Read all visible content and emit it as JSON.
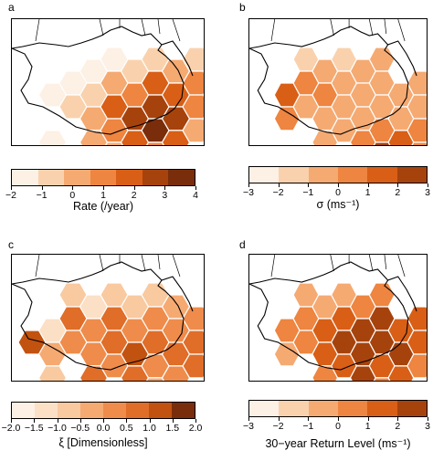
{
  "panels": [
    {
      "id": "a",
      "label": "a",
      "colorbar_title": "Rate (/year)",
      "ticks": [
        "−2",
        "−1",
        "0",
        "1",
        "2",
        "3",
        "4"
      ],
      "colors": [
        "#fdf0e4",
        "#f9d2ad",
        "#f5aa72",
        "#ee8540",
        "#d95f16",
        "#a6430d",
        "#7a2d0b"
      ],
      "cells": [
        {
          "c": 1,
          "r": 1,
          "v": 0
        },
        {
          "c": 1,
          "r": 3,
          "v": 0
        },
        {
          "c": 2,
          "r": 1,
          "v": 0
        },
        {
          "c": 2,
          "r": 2,
          "v": 1
        },
        {
          "c": 3,
          "r": 0,
          "v": 0
        },
        {
          "c": 3,
          "r": 1,
          "v": 1
        },
        {
          "c": 3,
          "r": 2,
          "v": 2
        },
        {
          "c": 3,
          "r": 3,
          "v": 2
        },
        {
          "c": 3,
          "r": 4,
          "v": 1
        },
        {
          "c": 4,
          "r": 0,
          "v": 0
        },
        {
          "c": 4,
          "r": 1,
          "v": 2
        },
        {
          "c": 4,
          "r": 2,
          "v": 4
        },
        {
          "c": 4,
          "r": 3,
          "v": 3
        },
        {
          "c": 4,
          "r": 4,
          "v": 2
        },
        {
          "c": 5,
          "r": 0,
          "v": 1
        },
        {
          "c": 5,
          "r": 1,
          "v": 3
        },
        {
          "c": 5,
          "r": 2,
          "v": 5
        },
        {
          "c": 5,
          "r": 3,
          "v": 4
        },
        {
          "c": 5,
          "r": 4,
          "v": 2
        },
        {
          "c": 5,
          "r": 5,
          "v": 1
        },
        {
          "c": 6,
          "r": 0,
          "v": 1
        },
        {
          "c": 6,
          "r": 1,
          "v": 4
        },
        {
          "c": 6,
          "r": 2,
          "v": 5
        },
        {
          "c": 6,
          "r": 3,
          "v": 6
        },
        {
          "c": 6,
          "r": 4,
          "v": 3
        },
        {
          "c": 6,
          "r": 5,
          "v": 2
        },
        {
          "c": 7,
          "r": 0,
          "v": 2
        },
        {
          "c": 7,
          "r": 1,
          "v": 4
        },
        {
          "c": 7,
          "r": 2,
          "v": 5
        },
        {
          "c": 7,
          "r": 3,
          "v": 4
        },
        {
          "c": 7,
          "r": 4,
          "v": 2
        },
        {
          "c": 8,
          "r": 0,
          "v": 1
        },
        {
          "c": 8,
          "r": 1,
          "v": 3
        },
        {
          "c": 8,
          "r": 2,
          "v": 3
        },
        {
          "c": 8,
          "r": 3,
          "v": 2
        },
        {
          "c": 9,
          "r": 1,
          "v": 1
        },
        {
          "c": 9,
          "r": 2,
          "v": 1
        },
        {
          "c": 10,
          "r": 0,
          "v": 0
        },
        {
          "c": 10,
          "r": 1,
          "v": 0
        },
        {
          "c": 11,
          "r": 0,
          "v": 0
        }
      ]
    },
    {
      "id": "b",
      "label": "b",
      "colorbar_title": "σ (ms⁻¹)",
      "ticks": [
        "−3",
        "−2",
        "−1",
        "0",
        "1",
        "2",
        "3"
      ],
      "colors": [
        "#fdf0e4",
        "#f9d2ad",
        "#f5aa72",
        "#ee8540",
        "#d95f16",
        "#a6430d"
      ],
      "cells": [
        {
          "c": 1,
          "r": 1,
          "v": 4
        },
        {
          "c": 1,
          "r": 2,
          "v": 3
        },
        {
          "c": 2,
          "r": 0,
          "v": 1
        },
        {
          "c": 2,
          "r": 1,
          "v": 3
        },
        {
          "c": 2,
          "r": 2,
          "v": 2
        },
        {
          "c": 3,
          "r": 0,
          "v": 2
        },
        {
          "c": 3,
          "r": 1,
          "v": 3
        },
        {
          "c": 3,
          "r": 2,
          "v": 2
        },
        {
          "c": 3,
          "r": 3,
          "v": 2
        },
        {
          "c": 4,
          "r": 0,
          "v": 1
        },
        {
          "c": 4,
          "r": 1,
          "v": 2
        },
        {
          "c": 4,
          "r": 2,
          "v": 2
        },
        {
          "c": 4,
          "r": 3,
          "v": 2
        },
        {
          "c": 5,
          "r": 0,
          "v": 2
        },
        {
          "c": 5,
          "r": 1,
          "v": 2
        },
        {
          "c": 5,
          "r": 2,
          "v": 2
        },
        {
          "c": 5,
          "r": 3,
          "v": 3
        },
        {
          "c": 5,
          "r": 4,
          "v": 2
        },
        {
          "c": 6,
          "r": 0,
          "v": 2
        },
        {
          "c": 6,
          "r": 1,
          "v": 2
        },
        {
          "c": 6,
          "r": 2,
          "v": 2
        },
        {
          "c": 6,
          "r": 3,
          "v": 3
        },
        {
          "c": 6,
          "r": 4,
          "v": 5
        },
        {
          "c": 7,
          "r": 1,
          "v": 2
        },
        {
          "c": 7,
          "r": 2,
          "v": 2
        },
        {
          "c": 7,
          "r": 3,
          "v": 4
        },
        {
          "c": 7,
          "r": 4,
          "v": 4
        },
        {
          "c": 8,
          "r": 1,
          "v": 2
        },
        {
          "c": 8,
          "r": 2,
          "v": 2
        },
        {
          "c": 8,
          "r": 3,
          "v": 3
        },
        {
          "c": 8,
          "r": 4,
          "v": 3
        },
        {
          "c": 9,
          "r": 1,
          "v": 1
        },
        {
          "c": 9,
          "r": 2,
          "v": 2
        },
        {
          "c": 9,
          "r": 3,
          "v": 3
        },
        {
          "c": 9,
          "r": 4,
          "v": 5
        },
        {
          "c": 10,
          "r": 0,
          "v": 1
        },
        {
          "c": 10,
          "r": 1,
          "v": 1
        },
        {
          "c": 11,
          "r": 0,
          "v": 1
        }
      ]
    },
    {
      "id": "c",
      "label": "c",
      "colorbar_title": "ξ [Dimensionless]",
      "ticks": [
        "−2.0",
        "−1.5",
        "−1.0",
        "−0.5",
        "0.0",
        "0.5",
        "1.0",
        "1.5",
        "2.0"
      ],
      "colors": [
        "#fdf0e4",
        "#fbe0c6",
        "#f9c9a0",
        "#f5aa72",
        "#ef8c4b",
        "#e06d28",
        "#c2520f",
        "#7a2d0b"
      ],
      "cells": [
        {
          "c": 0,
          "r": 2,
          "v": 6
        },
        {
          "c": 1,
          "r": 1,
          "v": 1
        },
        {
          "c": 1,
          "r": 2,
          "v": 3
        },
        {
          "c": 1,
          "r": 3,
          "v": 2
        },
        {
          "c": 2,
          "r": 0,
          "v": 2
        },
        {
          "c": 2,
          "r": 1,
          "v": 5
        },
        {
          "c": 2,
          "r": 2,
          "v": 4
        },
        {
          "c": 3,
          "r": 0,
          "v": 1
        },
        {
          "c": 3,
          "r": 1,
          "v": 4
        },
        {
          "c": 3,
          "r": 2,
          "v": 4
        },
        {
          "c": 3,
          "r": 3,
          "v": 5
        },
        {
          "c": 4,
          "r": 0,
          "v": 2
        },
        {
          "c": 4,
          "r": 1,
          "v": 5
        },
        {
          "c": 4,
          "r": 2,
          "v": 5
        },
        {
          "c": 4,
          "r": 3,
          "v": 4
        },
        {
          "c": 5,
          "r": 0,
          "v": 2
        },
        {
          "c": 5,
          "r": 1,
          "v": 4
        },
        {
          "c": 5,
          "r": 2,
          "v": 6
        },
        {
          "c": 5,
          "r": 3,
          "v": 5
        },
        {
          "c": 5,
          "r": 4,
          "v": 3
        },
        {
          "c": 6,
          "r": 0,
          "v": 2
        },
        {
          "c": 6,
          "r": 1,
          "v": 4
        },
        {
          "c": 6,
          "r": 2,
          "v": 5
        },
        {
          "c": 6,
          "r": 3,
          "v": 4
        },
        {
          "c": 6,
          "r": 4,
          "v": 3
        },
        {
          "c": 7,
          "r": 0,
          "v": 3
        },
        {
          "c": 7,
          "r": 1,
          "v": 4
        },
        {
          "c": 7,
          "r": 2,
          "v": 5
        },
        {
          "c": 7,
          "r": 3,
          "v": 4
        },
        {
          "c": 8,
          "r": 1,
          "v": 4
        },
        {
          "c": 8,
          "r": 2,
          "v": 5
        },
        {
          "c": 8,
          "r": 3,
          "v": 5
        },
        {
          "c": 9,
          "r": 1,
          "v": 3
        },
        {
          "c": 9,
          "r": 2,
          "v": 5
        },
        {
          "c": 10,
          "r": 0,
          "v": 3
        },
        {
          "c": 10,
          "r": 1,
          "v": 3
        },
        {
          "c": 10,
          "r": 2,
          "v": 7
        }
      ]
    },
    {
      "id": "d",
      "label": "d",
      "colorbar_title": "30−year Return Level (ms⁻¹)",
      "ticks": [
        "−3",
        "−2",
        "−1",
        "0",
        "1",
        "2",
        "3"
      ],
      "colors": [
        "#fdf0e4",
        "#f9d2ad",
        "#f5aa72",
        "#ee8540",
        "#d95f16",
        "#a6430d"
      ],
      "cells": [
        {
          "c": 1,
          "r": 1,
          "v": 3
        },
        {
          "c": 1,
          "r": 2,
          "v": 2
        },
        {
          "c": 2,
          "r": 0,
          "v": 2
        },
        {
          "c": 2,
          "r": 1,
          "v": 3
        },
        {
          "c": 2,
          "r": 2,
          "v": 3
        },
        {
          "c": 3,
          "r": 0,
          "v": 2
        },
        {
          "c": 3,
          "r": 1,
          "v": 4
        },
        {
          "c": 3,
          "r": 2,
          "v": 4
        },
        {
          "c": 3,
          "r": 3,
          "v": 3
        },
        {
          "c": 4,
          "r": 0,
          "v": 2
        },
        {
          "c": 4,
          "r": 1,
          "v": 4
        },
        {
          "c": 4,
          "r": 2,
          "v": 5
        },
        {
          "c": 4,
          "r": 3,
          "v": 4
        },
        {
          "c": 5,
          "r": 0,
          "v": 3
        },
        {
          "c": 5,
          "r": 1,
          "v": 5
        },
        {
          "c": 5,
          "r": 2,
          "v": 5
        },
        {
          "c": 5,
          "r": 3,
          "v": 5
        },
        {
          "c": 5,
          "r": 4,
          "v": 3
        },
        {
          "c": 6,
          "r": 0,
          "v": 3
        },
        {
          "c": 6,
          "r": 1,
          "v": 5
        },
        {
          "c": 6,
          "r": 2,
          "v": 5
        },
        {
          "c": 6,
          "r": 3,
          "v": 4
        },
        {
          "c": 6,
          "r": 4,
          "v": 3
        },
        {
          "c": 7,
          "r": 1,
          "v": 4
        },
        {
          "c": 7,
          "r": 2,
          "v": 5
        },
        {
          "c": 7,
          "r": 3,
          "v": 4
        },
        {
          "c": 8,
          "r": 1,
          "v": 4
        },
        {
          "c": 8,
          "r": 2,
          "v": 4
        },
        {
          "c": 8,
          "r": 3,
          "v": 3
        },
        {
          "c": 9,
          "r": 1,
          "v": 2
        },
        {
          "c": 9,
          "r": 2,
          "v": 3
        },
        {
          "c": 10,
          "r": 0,
          "v": 1
        },
        {
          "c": 10,
          "r": 1,
          "v": 2
        },
        {
          "c": 11,
          "r": 0,
          "v": 1
        }
      ]
    }
  ]
}
